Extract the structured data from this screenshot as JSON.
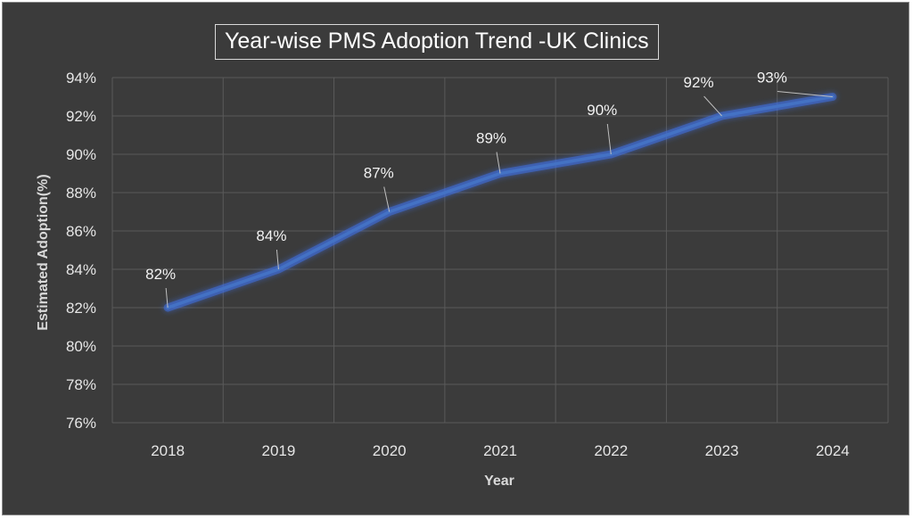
{
  "chart_data": {
    "type": "line",
    "title": "Year-wise PMS Adoption Trend -UK Clinics",
    "xlabel": "Year",
    "ylabel": "Estimated Adoption(%)",
    "categories": [
      "2018",
      "2019",
      "2020",
      "2021",
      "2022",
      "2023",
      "2024"
    ],
    "series": [
      {
        "values": [
          82,
          84,
          87,
          89,
          90,
          92,
          93
        ],
        "color": "#4472c4"
      }
    ],
    "data_labels": [
      "82%",
      "84%",
      "87%",
      "89%",
      "90%",
      "92%",
      "93%"
    ],
    "ylim": [
      76,
      94
    ],
    "yticks": [
      76,
      78,
      80,
      82,
      84,
      86,
      88,
      90,
      92,
      94
    ],
    "ytick_labels": [
      "76%",
      "78%",
      "80%",
      "82%",
      "84%",
      "86%",
      "88%",
      "90%",
      "92%",
      "94%"
    ],
    "grid": true,
    "legend": "none",
    "colors": {
      "background": "#3b3b3b",
      "line": "#4472c4",
      "text": "#e6e6e6"
    }
  }
}
